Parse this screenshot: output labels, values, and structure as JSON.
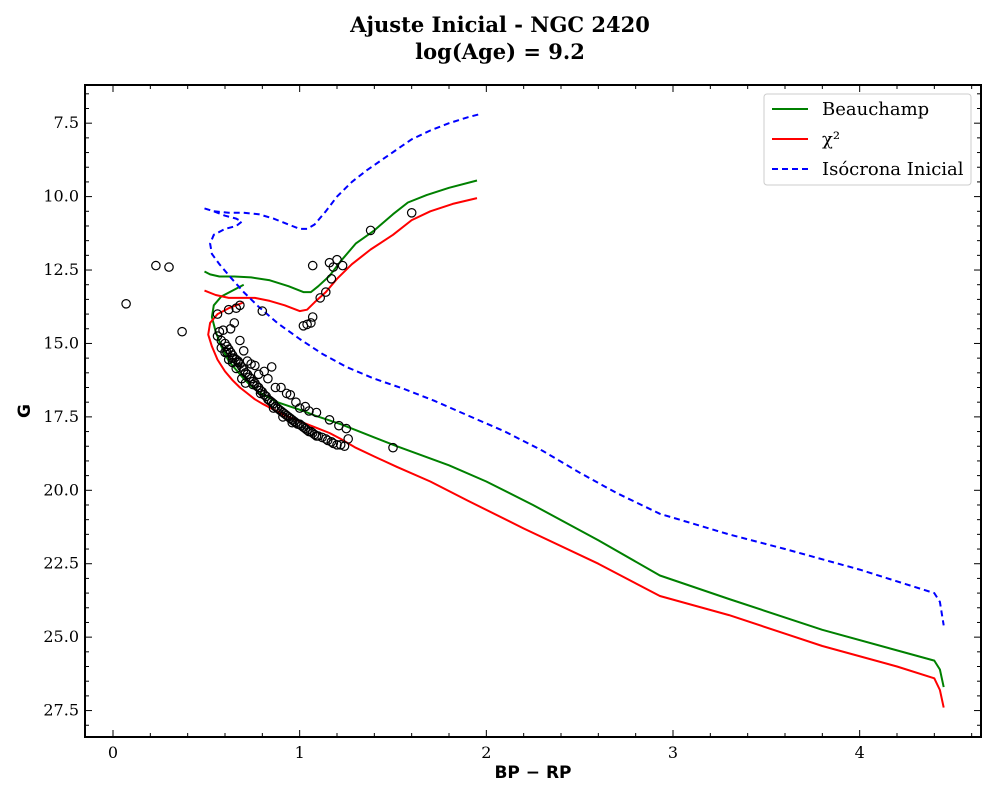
{
  "chart_data": {
    "type": "scatter",
    "title": "Ajuste Inicial - NGC 2420",
    "subtitle": "log(Age) = 9.2",
    "xlabel": "BP − RP",
    "ylabel": "G",
    "xlim": [
      -0.15,
      4.65
    ],
    "ylim": [
      28.4,
      6.2
    ],
    "y_inverted": true,
    "xticks": [
      0,
      1,
      2,
      3,
      4
    ],
    "xtick_labels": [
      "0",
      "1",
      "2",
      "3",
      "4"
    ],
    "yticks": [
      7.5,
      10.0,
      12.5,
      15.0,
      17.5,
      20.0,
      22.5,
      25.0,
      27.5
    ],
    "ytick_labels": [
      "7.5",
      "10.0",
      "12.5",
      "15.0",
      "17.5",
      "20.0",
      "22.5",
      "25.0",
      "27.5"
    ],
    "grid": false,
    "legend_position": "top-right",
    "series": [
      {
        "name": "Beauchamp",
        "kind": "line",
        "color": "#008000",
        "dash": "solid",
        "x": [
          0.7,
          0.64,
          0.58,
          0.54,
          0.53,
          0.55,
          0.58,
          0.62,
          0.66,
          0.7,
          0.74,
          0.78,
          0.82,
          0.88,
          0.95,
          1.02,
          1.08,
          1.15,
          1.22,
          1.3,
          1.4,
          1.52,
          1.65,
          1.8,
          2.0,
          2.25,
          2.6,
          2.93,
          3.3,
          3.8,
          4.2,
          4.4,
          4.43,
          4.45
        ],
        "y": [
          13.0,
          13.2,
          13.4,
          13.7,
          14.1,
          14.6,
          15.1,
          15.6,
          15.9,
          16.2,
          16.45,
          16.65,
          16.8,
          17.0,
          17.15,
          17.3,
          17.45,
          17.6,
          17.75,
          17.95,
          18.2,
          18.5,
          18.8,
          19.15,
          19.7,
          20.5,
          21.7,
          22.9,
          23.7,
          24.75,
          25.45,
          25.8,
          26.1,
          26.7
        ]
      },
      {
        "name": "Beauchamp",
        "kind": "line",
        "color": "#008000",
        "dash": "solid",
        "x": [
          0.49,
          0.52,
          0.57,
          0.65,
          0.74,
          0.84,
          0.94,
          1.02,
          1.06,
          1.1,
          1.16,
          1.22,
          1.3,
          1.4,
          1.5,
          1.58,
          1.68,
          1.8,
          1.95
        ],
        "y": [
          12.55,
          12.65,
          12.72,
          12.72,
          12.75,
          12.85,
          13.05,
          13.25,
          13.25,
          13.05,
          12.7,
          12.2,
          11.6,
          11.15,
          10.6,
          10.2,
          9.95,
          9.7,
          9.45
        ]
      },
      {
        "name": "χ²",
        "kind": "line",
        "color": "#ff0000",
        "dash": "solid",
        "x": [
          0.49,
          0.55,
          0.62,
          0.68,
          0.76,
          0.84,
          0.92,
          1.0,
          1.04,
          1.08,
          1.14,
          1.2,
          1.28,
          1.38,
          1.5,
          1.6,
          1.7,
          1.82,
          1.95
        ],
        "y": [
          13.2,
          13.35,
          13.45,
          13.45,
          13.45,
          13.55,
          13.7,
          13.9,
          13.85,
          13.6,
          13.25,
          12.8,
          12.3,
          11.8,
          11.3,
          10.8,
          10.5,
          10.25,
          10.05
        ]
      },
      {
        "name": "χ²",
        "kind": "line",
        "color": "#ff0000",
        "dash": "solid",
        "x": [
          0.7,
          0.62,
          0.56,
          0.52,
          0.51,
          0.53,
          0.56,
          0.6,
          0.64,
          0.68,
          0.72,
          0.76,
          0.8,
          0.86,
          0.92,
          0.98,
          1.04,
          1.1,
          1.16,
          1.22,
          1.3,
          1.4,
          1.52,
          1.7,
          1.9,
          2.2,
          2.6,
          2.93,
          3.3,
          3.8,
          4.2,
          4.4,
          4.43,
          4.45
        ],
        "y": [
          13.6,
          13.8,
          14.0,
          14.3,
          14.7,
          15.1,
          15.55,
          15.95,
          16.25,
          16.5,
          16.7,
          16.9,
          17.05,
          17.25,
          17.45,
          17.6,
          17.75,
          17.9,
          18.05,
          18.25,
          18.55,
          18.85,
          19.2,
          19.7,
          20.35,
          21.3,
          22.5,
          23.6,
          24.25,
          25.3,
          26.0,
          26.4,
          26.8,
          27.4
        ]
      },
      {
        "name": "Isócrona Inicial",
        "kind": "line",
        "color": "#0000ff",
        "dash": "dashed",
        "x": [
          0.49,
          0.54,
          0.6,
          0.66,
          0.69,
          0.66,
          0.6,
          0.54,
          0.52,
          0.53,
          0.57,
          0.63,
          0.7,
          0.78,
          0.88,
          1.0,
          1.12,
          1.25,
          1.4,
          1.56,
          1.72,
          1.9,
          2.1,
          2.3,
          2.5,
          2.7,
          2.93,
          3.3,
          3.6,
          4.0,
          4.25,
          4.4,
          4.43,
          4.45
        ],
        "y": [
          10.4,
          10.5,
          10.65,
          10.75,
          10.85,
          11.0,
          11.1,
          11.3,
          11.6,
          11.95,
          12.3,
          12.75,
          13.25,
          13.75,
          14.3,
          14.85,
          15.35,
          15.8,
          16.2,
          16.55,
          16.95,
          17.45,
          18.0,
          18.65,
          19.4,
          20.1,
          20.8,
          21.5,
          22.0,
          22.7,
          23.2,
          23.5,
          23.8,
          24.6
        ]
      },
      {
        "name": "Isócrona Inicial",
        "kind": "line",
        "color": "#0000ff",
        "dash": "dashed",
        "x": [
          0.54,
          0.62,
          0.7,
          0.78,
          0.86,
          0.94,
          1.0,
          1.04,
          1.08,
          1.14,
          1.2,
          1.28,
          1.36,
          1.44,
          1.52,
          1.6,
          1.7,
          1.8,
          1.9,
          1.96
        ],
        "y": [
          10.5,
          10.55,
          10.55,
          10.6,
          10.75,
          10.95,
          11.1,
          11.1,
          10.95,
          10.5,
          10.0,
          9.5,
          9.1,
          8.75,
          8.4,
          8.05,
          7.75,
          7.5,
          7.3,
          7.2
        ]
      }
    ],
    "points": {
      "name": "observed stars",
      "marker": "open-circle",
      "color": "#000000",
      "x": [
        0.07,
        0.23,
        0.3,
        0.37,
        1.38,
        1.6,
        1.07,
        1.16,
        1.18,
        1.2,
        1.23,
        1.17,
        1.14,
        1.11,
        1.07,
        1.06,
        1.04,
        1.02,
        0.8,
        0.56,
        0.62,
        0.66,
        0.68,
        1.5,
        0.56,
        0.58,
        0.6,
        0.61,
        0.62,
        0.63,
        0.64,
        0.65,
        0.66,
        0.67,
        0.68,
        0.69,
        0.7,
        0.71,
        0.72,
        0.73,
        0.74,
        0.75,
        0.76,
        0.77,
        0.78,
        0.79,
        0.8,
        0.81,
        0.82,
        0.83,
        0.84,
        0.85,
        0.86,
        0.87,
        0.88,
        0.89,
        0.9,
        0.91,
        0.92,
        0.93,
        0.94,
        0.95,
        0.96,
        0.97,
        0.98,
        0.99,
        1.0,
        1.01,
        1.02,
        1.03,
        1.04,
        1.05,
        1.06,
        1.07,
        1.08,
        1.09,
        1.1,
        1.12,
        1.14,
        1.15,
        1.17,
        1.18,
        1.2,
        1.22,
        1.24,
        1.25,
        1.26,
        0.57,
        0.59,
        0.63,
        0.65,
        0.68,
        0.72,
        0.76,
        0.81,
        0.85,
        0.9,
        0.95,
        1.0,
        1.05,
        0.61,
        0.64,
        0.67,
        0.7,
        0.74,
        0.78,
        0.83,
        0.87,
        0.93,
        0.98,
        1.03,
        1.09,
        1.16,
        1.21,
        0.58,
        0.6,
        0.62,
        0.64,
        0.66,
        0.69,
        0.71,
        0.75,
        0.79,
        0.86,
        0.91,
        0.96
      ],
      "y": [
        13.65,
        12.35,
        12.4,
        14.6,
        11.15,
        10.55,
        12.35,
        12.25,
        12.4,
        12.15,
        12.35,
        12.8,
        13.25,
        13.45,
        14.1,
        14.3,
        14.35,
        14.4,
        13.9,
        14.0,
        13.85,
        13.8,
        13.7,
        18.55,
        14.75,
        14.9,
        15.0,
        15.1,
        15.2,
        15.3,
        15.4,
        15.5,
        15.55,
        15.65,
        15.7,
        15.8,
        15.9,
        16.0,
        16.05,
        16.15,
        16.2,
        16.3,
        16.35,
        16.45,
        16.5,
        16.6,
        16.65,
        16.75,
        16.8,
        16.9,
        16.95,
        17.0,
        17.05,
        17.15,
        17.2,
        17.25,
        17.3,
        17.35,
        17.4,
        17.45,
        17.5,
        17.55,
        17.6,
        17.65,
        17.7,
        17.75,
        17.75,
        17.8,
        17.85,
        17.9,
        17.95,
        18.0,
        18.0,
        18.05,
        18.1,
        18.15,
        18.15,
        18.2,
        18.25,
        18.3,
        18.35,
        18.4,
        18.45,
        18.45,
        18.5,
        17.9,
        18.25,
        14.6,
        14.55,
        14.5,
        14.3,
        14.9,
        15.6,
        15.75,
        15.95,
        15.8,
        16.5,
        16.75,
        17.2,
        17.3,
        15.3,
        15.5,
        15.6,
        15.25,
        15.7,
        16.05,
        16.2,
        16.5,
        16.7,
        17.0,
        17.15,
        17.35,
        17.6,
        17.8,
        15.15,
        15.3,
        15.55,
        15.65,
        15.85,
        16.2,
        16.35,
        16.4,
        16.7,
        17.2,
        17.5,
        17.7
      ]
    }
  },
  "legend": {
    "items": [
      {
        "label": "Beauchamp",
        "color": "#008000",
        "dash": "solid"
      },
      {
        "label": "χ²",
        "color": "#ff0000",
        "dash": "solid"
      },
      {
        "label": "Isócrona Inicial",
        "color": "#0000ff",
        "dash": "dashed"
      }
    ]
  }
}
